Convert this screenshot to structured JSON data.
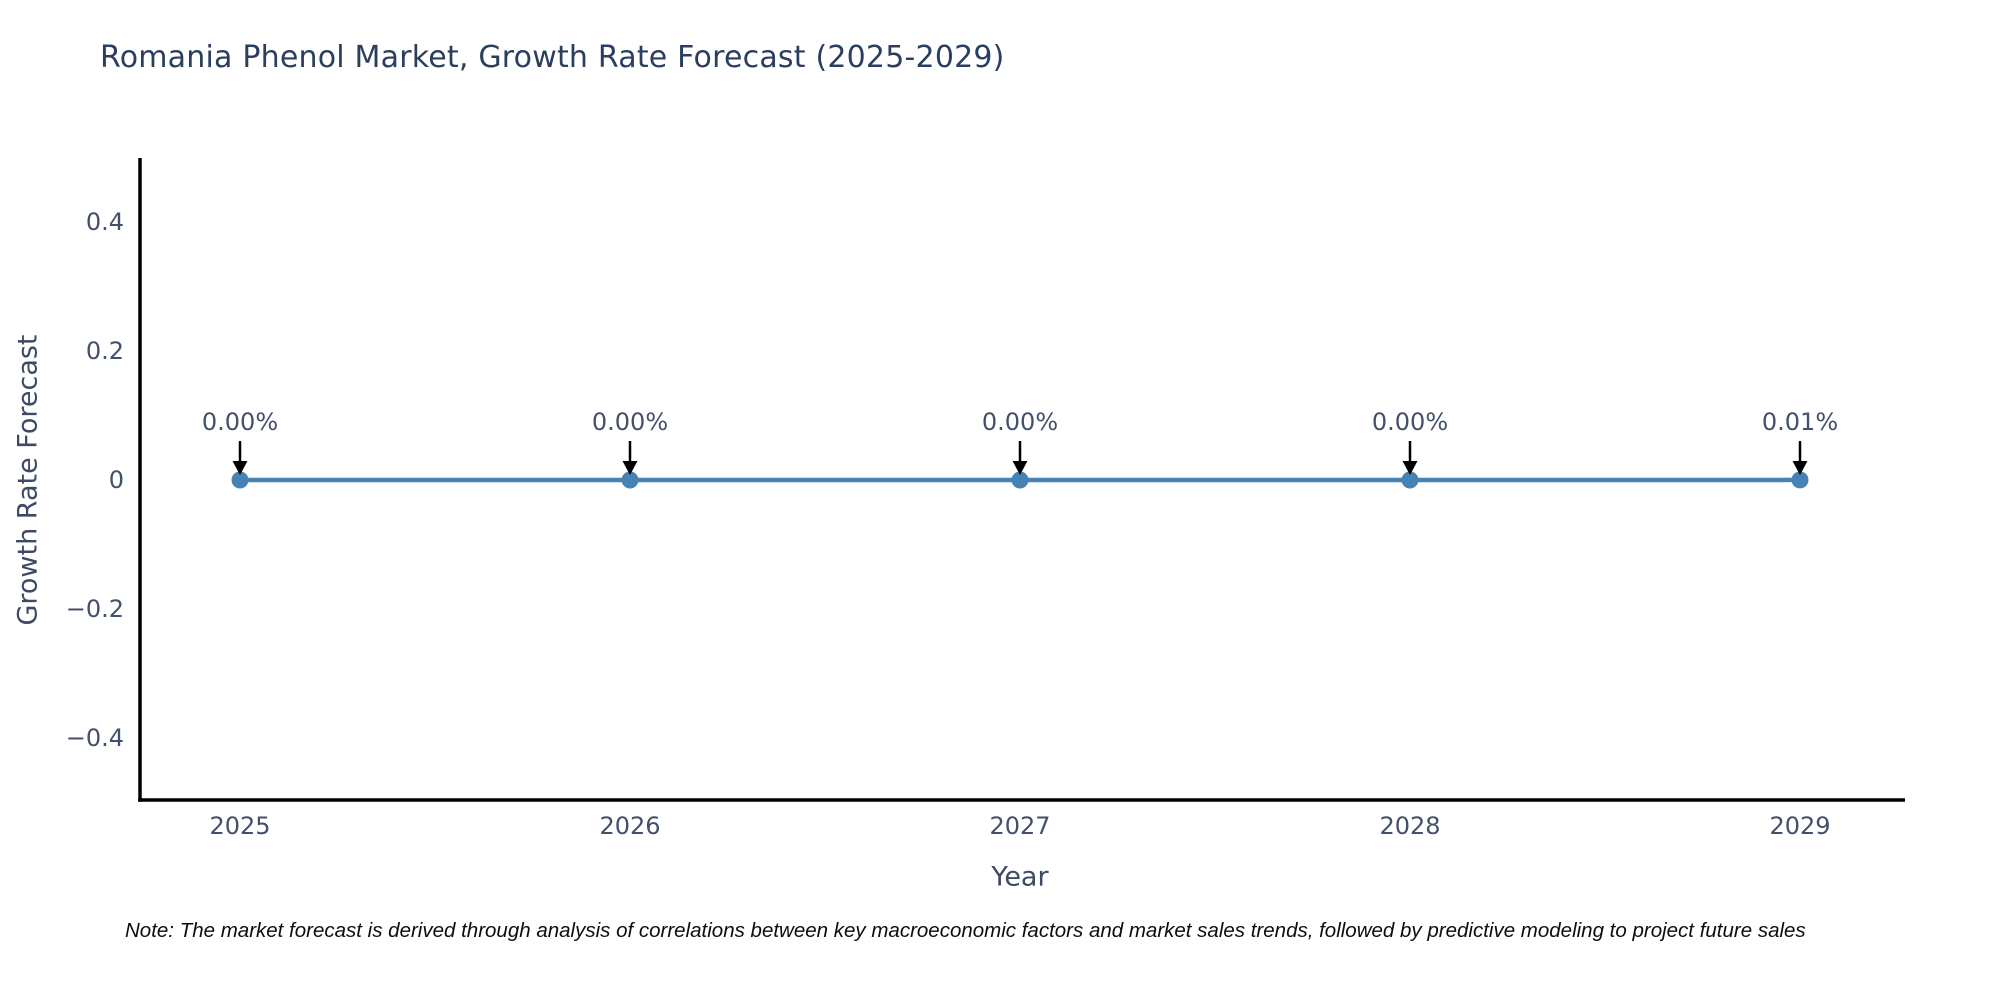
{
  "title": "Romania Phenol Market, Growth Rate Forecast (2025-2029)",
  "note": "Note: The market forecast is derived through analysis of correlations between key macroeconomic factors and market sales trends, followed by predictive modeling to project future sales",
  "chart_data": {
    "type": "line",
    "title": "Romania Phenol Market, Growth Rate Forecast (2025-2029)",
    "xlabel": "Year",
    "ylabel": "Growth Rate Forecast",
    "x": [
      2025,
      2026,
      2027,
      2028,
      2029
    ],
    "xtick_labels": [
      "2025",
      "2026",
      "2027",
      "2028",
      "2029"
    ],
    "series": [
      {
        "name": "Growth Rate Forecast",
        "values_percent": [
          0.0,
          0.0,
          0.0,
          0.0,
          0.01
        ]
      }
    ],
    "point_labels": [
      "0.00%",
      "0.00%",
      "0.00%",
      "0.00%",
      "0.01%"
    ],
    "yticks": [
      0.4,
      0.2,
      0,
      -0.2,
      -0.4
    ],
    "ytick_labels": [
      "0.4",
      "0.2",
      "0",
      "−0.2",
      "−0.4"
    ],
    "ylim": [
      -0.475,
      0.478
    ],
    "grid": false,
    "legend": "none",
    "line_color": "#4682b4",
    "marker_color": "#4682b4",
    "arrow_color": "#000000",
    "axis_color": "#000000",
    "text_color": "#2a3f5f",
    "background": "#ffffff"
  }
}
